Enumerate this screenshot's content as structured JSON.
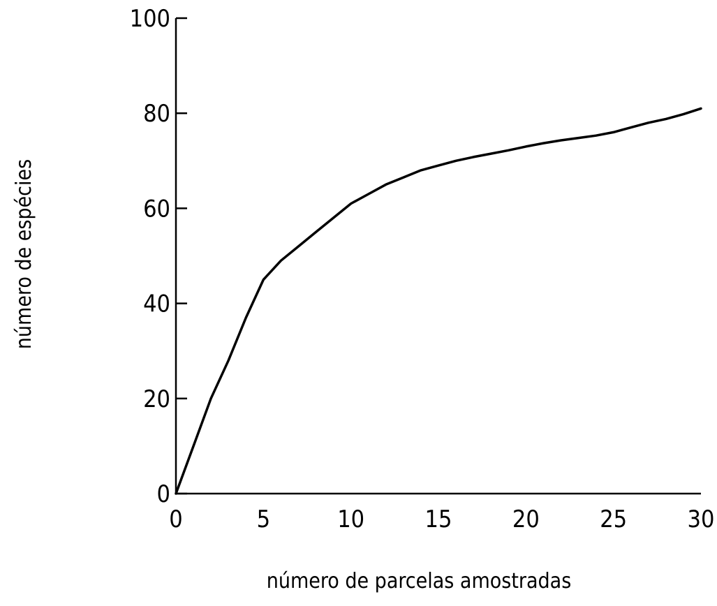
{
  "chart_data": {
    "type": "line",
    "xlabel": "número de parcelas amostradas",
    "ylabel": "número de espécies",
    "xlim": [
      0,
      30
    ],
    "ylim": [
      0,
      100
    ],
    "x_ticks": [
      0,
      5,
      10,
      15,
      20,
      25,
      30
    ],
    "y_ticks": [
      0,
      20,
      40,
      60,
      80,
      100
    ],
    "grid": false,
    "series": [
      {
        "x": [
          0,
          1,
          2,
          3,
          4,
          5,
          6,
          7,
          8,
          9,
          10,
          11,
          12,
          13,
          14,
          15,
          16,
          17,
          18,
          19,
          20,
          21,
          22,
          23,
          24,
          25,
          26,
          27,
          28,
          29,
          30
        ],
        "y": [
          0,
          10,
          20,
          28,
          37,
          45,
          49,
          52,
          55,
          58,
          61,
          63,
          65,
          66.5,
          68,
          69,
          70,
          70.8,
          71.5,
          72.2,
          73,
          73.7,
          74.3,
          74.8,
          75.3,
          76,
          77,
          78,
          78.8,
          79.8,
          81
        ]
      }
    ]
  }
}
